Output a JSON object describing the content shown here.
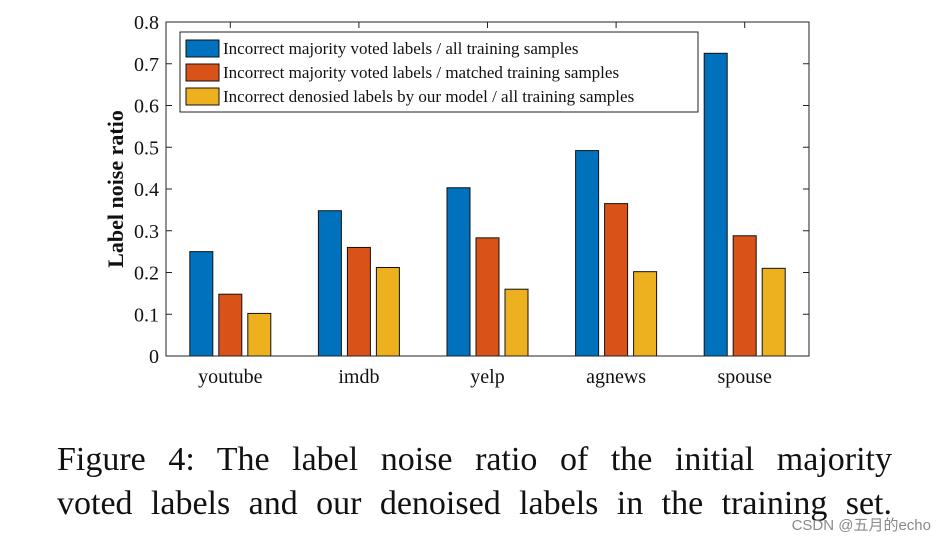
{
  "chart_data": {
    "type": "bar",
    "title": "",
    "xlabel": "",
    "ylabel": "Label noise ratio",
    "ylim": [
      0,
      0.8
    ],
    "yticks": [
      "0",
      "0.1",
      "0.2",
      "0.3",
      "0.4",
      "0.5",
      "0.6",
      "0.7",
      "0.8"
    ],
    "categories": [
      "youtube",
      "imdb",
      "yelp",
      "agnews",
      "spouse"
    ],
    "series": [
      {
        "name": "Incorrect majority voted labels / all training samples",
        "color": "#0072BD",
        "values": [
          0.25,
          0.348,
          0.403,
          0.492,
          0.725
        ]
      },
      {
        "name": "Incorrect majority voted labels / matched training samples",
        "color": "#D95319",
        "values": [
          0.148,
          0.26,
          0.283,
          0.365,
          0.288
        ]
      },
      {
        "name": "Incorrect denosied labels by our model / all training samples",
        "color": "#EDB120",
        "values": [
          0.102,
          0.212,
          0.16,
          0.202,
          0.21
        ]
      }
    ],
    "legend_position": "top-left",
    "grid": false
  },
  "caption": {
    "line1": "Figure 4:  The label noise ratio of the initial majority",
    "line2": "voted labels and our denoised labels in the training set."
  },
  "watermark": "CSDN @五月的echo"
}
